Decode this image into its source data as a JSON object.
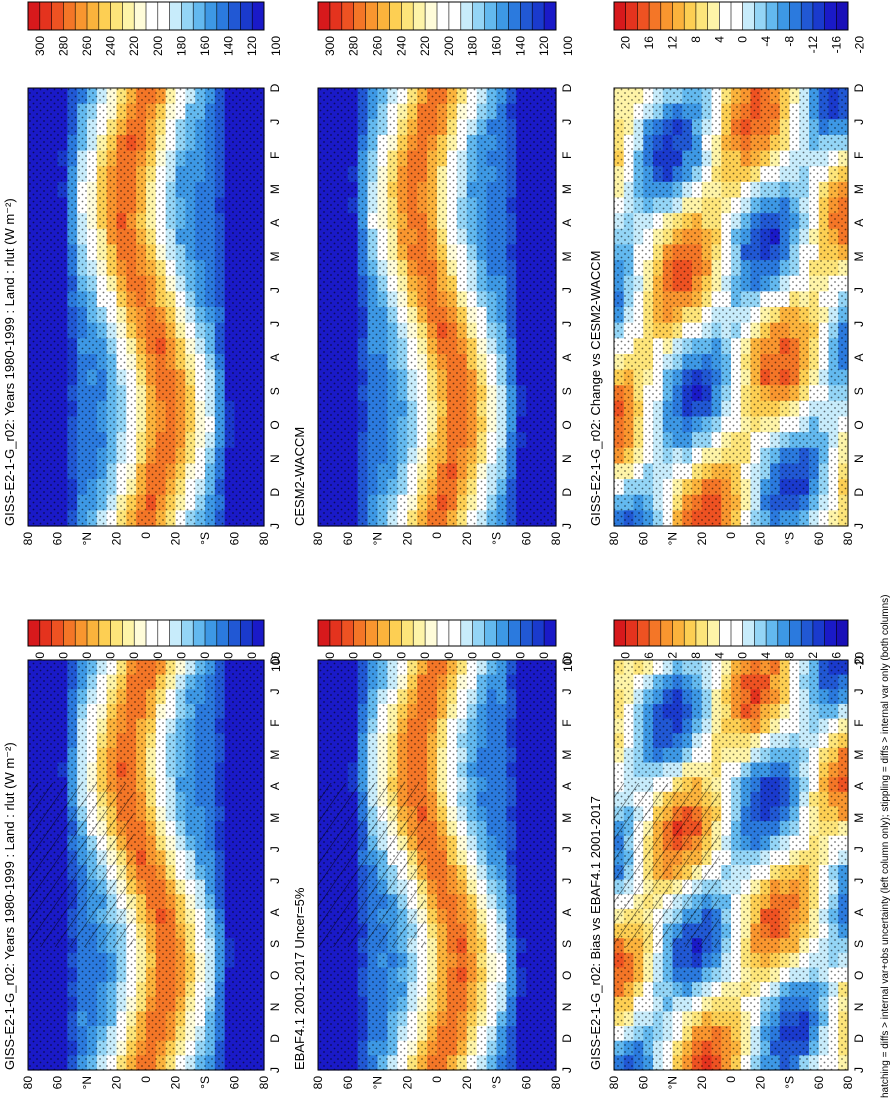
{
  "footnote": "hatching = diffs > internal var+obs uncertainty (left column only); stippling = diffs > internal var only (both columns)",
  "colorbars": {
    "absolute": {
      "ticks": [
        "300",
        "280",
        "260",
        "240",
        "220",
        "200",
        "180",
        "160",
        "140",
        "120",
        "100"
      ],
      "colors": [
        "#d7191c",
        "#e4331e",
        "#ee5222",
        "#f47627",
        "#f9962f",
        "#fbb33c",
        "#fdcf53",
        "#fde57a",
        "#fef4a8",
        "#fffcd9",
        "#ffffff",
        "#ffffff",
        "#c8ecfb",
        "#94d5f6",
        "#63b9ef",
        "#3d98e5",
        "#2b7ade",
        "#2158d4",
        "#1a3acd",
        "#1a1ac8"
      ]
    },
    "difference": {
      "ticks": [
        "20",
        "16",
        "12",
        "8",
        "4",
        "0",
        "-4",
        "-8",
        "-12",
        "-16",
        "-20"
      ],
      "colors": [
        "#d7191c",
        "#e4331e",
        "#ee5222",
        "#f47627",
        "#f9962f",
        "#fbb33c",
        "#fdcf53",
        "#fde57a",
        "#fef4a8",
        "#ffffff",
        "#ffffff",
        "#c8ecfb",
        "#94d5f6",
        "#63b9ef",
        "#3d98e5",
        "#2b7ade",
        "#2158d4",
        "#1a3acd",
        "#1a1ac8",
        "#1a10b8"
      ]
    }
  },
  "chart_data": [
    {
      "type": "heatmap",
      "title": "GISS-E2-1-G_r02: Years 1980-1999 : Land : rlut (W m⁻²)",
      "x_ticks": [
        "D",
        "J",
        "F",
        "M",
        "A",
        "M",
        "J",
        "J",
        "A",
        "S",
        "O",
        "N",
        "D",
        "J"
      ],
      "y_ticks": [
        "80",
        "60",
        "°N",
        "20",
        "0",
        "20",
        "°S",
        "60",
        "80"
      ],
      "colorbar": "absolute",
      "field": "absolute",
      "hatching": true,
      "stippling": true
    },
    {
      "type": "heatmap",
      "title": "EBAF4.1 2001-2017 Uncer=5%",
      "x_ticks": [
        "D",
        "J",
        "F",
        "M",
        "A",
        "M",
        "J",
        "J",
        "A",
        "S",
        "O",
        "N",
        "D",
        "J"
      ],
      "y_ticks": [
        "80",
        "60",
        "°N",
        "20",
        "0",
        "20",
        "°S",
        "60",
        "80"
      ],
      "colorbar": "absolute",
      "field": "absolute",
      "hatching": true,
      "stippling": true
    },
    {
      "type": "heatmap",
      "title": "GISS-E2-1-G_r02: Bias vs EBAF4.1 2001-2017",
      "x_ticks": [
        "D",
        "J",
        "F",
        "M",
        "A",
        "M",
        "J",
        "J",
        "A",
        "S",
        "O",
        "N",
        "D",
        "J"
      ],
      "y_ticks": [
        "80",
        "60",
        "°N",
        "20",
        "0",
        "20",
        "°S",
        "60",
        "80"
      ],
      "colorbar": "difference",
      "field": "difference",
      "hatching": true,
      "stippling": true
    },
    {
      "type": "heatmap",
      "title": "GISS-E2-1-G_r02: Years 1980-1999 : Land : rlut (W m⁻²)",
      "x_ticks": [
        "D",
        "J",
        "F",
        "M",
        "A",
        "M",
        "J",
        "J",
        "A",
        "S",
        "O",
        "N",
        "D",
        "J"
      ],
      "y_ticks": [
        "80",
        "60",
        "°N",
        "20",
        "0",
        "20",
        "°S",
        "60",
        "80"
      ],
      "colorbar": "absolute",
      "field": "absolute",
      "hatching": false,
      "stippling": true
    },
    {
      "type": "heatmap",
      "title": "CESM2-WACCM",
      "x_ticks": [
        "D",
        "J",
        "F",
        "M",
        "A",
        "M",
        "J",
        "J",
        "A",
        "S",
        "O",
        "N",
        "D",
        "J"
      ],
      "y_ticks": [
        "80",
        "60",
        "°N",
        "20",
        "0",
        "20",
        "°S",
        "60",
        "80"
      ],
      "colorbar": "absolute",
      "field": "absolute",
      "hatching": false,
      "stippling": true
    },
    {
      "type": "heatmap",
      "title": "GISS-E2-1-G_r02: Change vs CESM2-WACCM",
      "x_ticks": [
        "D",
        "J",
        "F",
        "M",
        "A",
        "M",
        "J",
        "J",
        "A",
        "S",
        "O",
        "N",
        "D",
        "J"
      ],
      "y_ticks": [
        "80",
        "60",
        "°N",
        "20",
        "0",
        "20",
        "°S",
        "60",
        "80"
      ],
      "colorbar": "difference",
      "field": "difference",
      "hatching": false,
      "stippling": true
    }
  ]
}
